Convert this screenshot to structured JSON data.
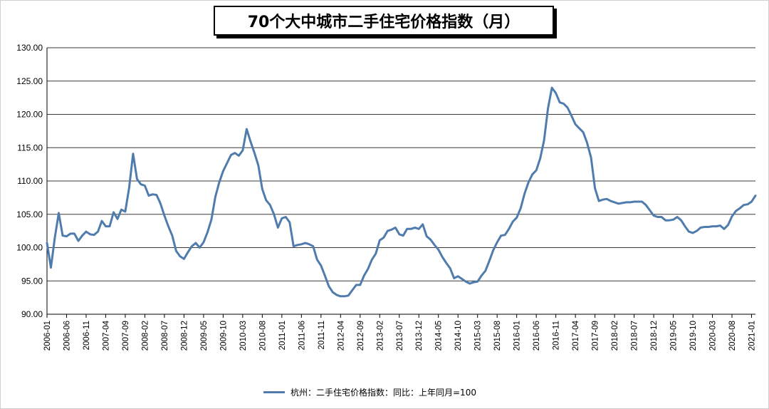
{
  "chart_data": {
    "type": "line",
    "title": "70个大中城市二手住宅价格指数（月）",
    "ylim": [
      90,
      130
    ],
    "yticks": [
      "90.00",
      "95.00",
      "100.00",
      "105.00",
      "110.00",
      "115.00",
      "120.00",
      "125.00",
      "130.00"
    ],
    "xtick_labels": [
      "2006-01",
      "2006-06",
      "2006-11",
      "2007-04",
      "2007-09",
      "2008-02",
      "2008-07",
      "2008-12",
      "2009-05",
      "2009-10",
      "2010-03",
      "2010-08",
      "2011-01",
      "2011-06",
      "2011-11",
      "2012-04",
      "2012-09",
      "2013-02",
      "2013-07",
      "2013-12",
      "2014-05",
      "2014-10",
      "2015-03",
      "2015-08",
      "2016-01",
      "2016-06",
      "2016-11",
      "2017-04",
      "2017-09",
      "2018-02",
      "2018-07",
      "2018-12",
      "2019-05",
      "2019-10",
      "2020-03",
      "2020-08",
      "2021-01"
    ],
    "legend_position": "bottom",
    "grid": "horizontal",
    "colors": {
      "line": "#4f7cac"
    },
    "series": [
      {
        "name": "杭州：二手住宅价格指数：同比：上年同月=100",
        "start": "2006-01",
        "values": [
          100.7,
          97.0,
          101.5,
          105.2,
          101.8,
          101.7,
          102.1,
          102.1,
          101.0,
          101.8,
          102.4,
          102.0,
          101.9,
          102.4,
          104.0,
          103.2,
          103.2,
          105.3,
          104.3,
          105.7,
          105.4,
          109.0,
          114.1,
          110.3,
          109.5,
          109.3,
          107.8,
          108.0,
          107.9,
          106.6,
          104.8,
          103.2,
          101.8,
          99.5,
          98.7,
          98.3,
          99.3,
          100.2,
          100.7,
          100.0,
          100.8,
          102.3,
          104.2,
          107.6,
          109.8,
          111.5,
          112.7,
          113.9,
          114.2,
          113.8,
          114.6,
          117.8,
          115.9,
          114.2,
          112.3,
          108.8,
          107.1,
          106.4,
          105.0,
          103.0,
          104.4,
          104.6,
          103.8,
          100.2,
          100.4,
          100.5,
          100.7,
          100.5,
          100.2,
          98.2,
          97.3,
          95.8,
          94.2,
          93.3,
          92.9,
          92.7,
          92.7,
          92.8,
          93.6,
          94.4,
          94.4,
          95.8,
          96.8,
          98.2,
          99.1,
          101.1,
          101.5,
          102.5,
          102.7,
          103.0,
          102.0,
          101.8,
          102.8,
          102.8,
          103.0,
          102.8,
          103.5,
          101.7,
          101.2,
          100.4,
          99.7,
          98.6,
          97.7,
          96.9,
          95.4,
          95.7,
          95.3,
          94.9,
          94.6,
          94.8,
          94.9,
          95.8,
          96.5,
          98.0,
          99.6,
          100.8,
          101.8,
          101.9,
          102.8,
          103.9,
          104.5,
          105.9,
          108.1,
          109.8,
          111.0,
          111.6,
          113.4,
          116.1,
          120.9,
          124.0,
          123.2,
          121.8,
          121.6,
          121.0,
          119.8,
          118.5,
          117.9,
          117.3,
          115.7,
          113.5,
          108.9,
          107.0,
          107.2,
          107.3,
          107.0,
          106.8,
          106.6,
          106.7,
          106.8,
          106.8,
          106.9,
          106.9,
          106.9,
          106.4,
          105.6,
          104.8,
          104.6,
          104.6,
          104.1,
          104.1,
          104.2,
          104.6,
          104.1,
          103.2,
          102.4,
          102.2,
          102.5,
          103.0,
          103.1,
          103.1,
          103.2,
          103.2,
          103.3,
          102.8,
          103.4,
          104.7,
          105.5,
          105.9,
          106.4,
          106.5,
          106.9,
          107.8
        ]
      }
    ]
  }
}
